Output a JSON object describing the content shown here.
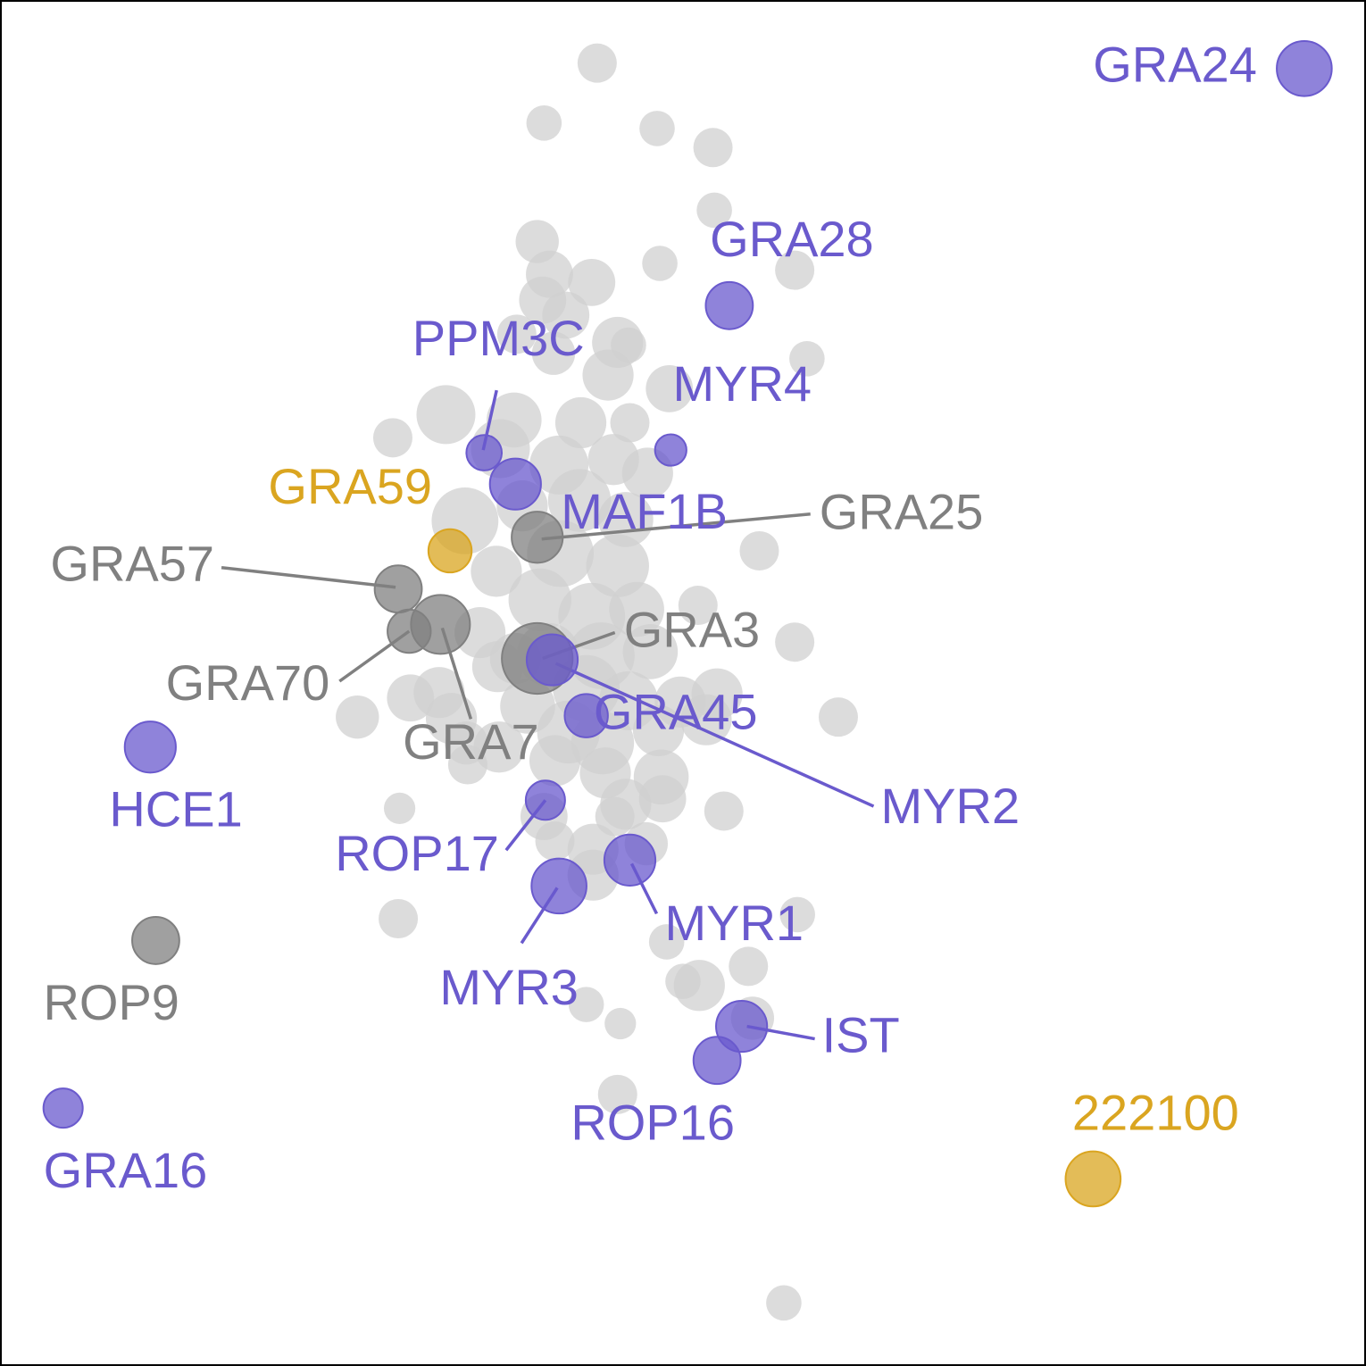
{
  "chart_data": {
    "type": "scatter",
    "title": "",
    "xlabel": "",
    "ylabel": "",
    "grid": false,
    "legend": "none",
    "axes_visible": false,
    "xlim": [
      0,
      100
    ],
    "ylim": [
      0,
      100
    ],
    "colors": {
      "background": "#d0d0d0",
      "highlight": "#6a5acd",
      "reference": "#808080",
      "novel": "#daa520"
    },
    "background_points": [
      {
        "x": 43.7,
        "y": 95.5,
        "s": 1.0
      },
      {
        "x": 39.8,
        "y": 91.1,
        "s": 0.9
      },
      {
        "x": 48.1,
        "y": 90.7,
        "s": 0.9
      },
      {
        "x": 52.2,
        "y": 89.3,
        "s": 1.0
      },
      {
        "x": 52.3,
        "y": 84.7,
        "s": 0.9
      },
      {
        "x": 39.3,
        "y": 82.4,
        "s": 1.1
      },
      {
        "x": 48.3,
        "y": 80.8,
        "s": 0.9
      },
      {
        "x": 40.2,
        "y": 80.0,
        "s": 1.2
      },
      {
        "x": 43.3,
        "y": 79.4,
        "s": 1.2
      },
      {
        "x": 58.2,
        "y": 80.3,
        "s": 1.0
      },
      {
        "x": 39.7,
        "y": 78.1,
        "s": 1.2
      },
      {
        "x": 41.4,
        "y": 77.0,
        "s": 1.2
      },
      {
        "x": 37.8,
        "y": 75.6,
        "s": 1.0
      },
      {
        "x": 40.5,
        "y": 74.2,
        "s": 1.1
      },
      {
        "x": 45.2,
        "y": 75.0,
        "s": 1.3
      },
      {
        "x": 46.0,
        "y": 74.8,
        "s": 0.9
      },
      {
        "x": 59.1,
        "y": 73.8,
        "s": 0.9
      },
      {
        "x": 44.5,
        "y": 72.6,
        "s": 1.3
      },
      {
        "x": 49.0,
        "y": 71.6,
        "s": 1.2
      },
      {
        "x": 32.6,
        "y": 69.7,
        "s": 1.5
      },
      {
        "x": 37.6,
        "y": 69.3,
        "s": 1.4
      },
      {
        "x": 42.5,
        "y": 69.1,
        "s": 1.3
      },
      {
        "x": 46.1,
        "y": 69.1,
        "s": 1.0
      },
      {
        "x": 28.7,
        "y": 68.0,
        "s": 1.0
      },
      {
        "x": 36.6,
        "y": 67.2,
        "s": 1.5
      },
      {
        "x": 40.9,
        "y": 66.0,
        "s": 1.5
      },
      {
        "x": 44.9,
        "y": 66.4,
        "s": 1.3
      },
      {
        "x": 47.4,
        "y": 65.4,
        "s": 1.3
      },
      {
        "x": 34.0,
        "y": 61.9,
        "s": 1.7
      },
      {
        "x": 38.2,
        "y": 63.0,
        "s": 1.3
      },
      {
        "x": 42.4,
        "y": 63.4,
        "s": 1.6
      },
      {
        "x": 45.8,
        "y": 62.0,
        "s": 1.4
      },
      {
        "x": 41.0,
        "y": 59.5,
        "s": 1.7
      },
      {
        "x": 45.2,
        "y": 58.6,
        "s": 1.6
      },
      {
        "x": 55.6,
        "y": 59.7,
        "s": 1.0
      },
      {
        "x": 36.3,
        "y": 58.2,
        "s": 1.3
      },
      {
        "x": 39.5,
        "y": 56.1,
        "s": 1.6
      },
      {
        "x": 43.3,
        "y": 54.9,
        "s": 1.7
      },
      {
        "x": 46.6,
        "y": 55.4,
        "s": 1.4
      },
      {
        "x": 51.1,
        "y": 55.7,
        "s": 1.0
      },
      {
        "x": 35.1,
        "y": 53.7,
        "s": 1.3
      },
      {
        "x": 37.7,
        "y": 51.8,
        "s": 1.3
      },
      {
        "x": 40.1,
        "y": 52.1,
        "s": 1.6
      },
      {
        "x": 44.0,
        "y": 52.0,
        "s": 1.7
      },
      {
        "x": 47.6,
        "y": 52.3,
        "s": 1.4
      },
      {
        "x": 58.2,
        "y": 53.0,
        "s": 1.0
      },
      {
        "x": 36.4,
        "y": 51.2,
        "s": 1.3
      },
      {
        "x": 42.9,
        "y": 49.6,
        "s": 1.7
      },
      {
        "x": 46.0,
        "y": 48.7,
        "s": 1.5
      },
      {
        "x": 49.8,
        "y": 48.6,
        "s": 1.3
      },
      {
        "x": 52.5,
        "y": 49.2,
        "s": 1.3
      },
      {
        "x": 32.1,
        "y": 49.3,
        "s": 1.3
      },
      {
        "x": 26.1,
        "y": 47.5,
        "s": 1.1
      },
      {
        "x": 30.0,
        "y": 48.9,
        "s": 1.2
      },
      {
        "x": 38.6,
        "y": 48.3,
        "s": 1.4
      },
      {
        "x": 41.6,
        "y": 46.4,
        "s": 1.6
      },
      {
        "x": 44.1,
        "y": 45.6,
        "s": 1.6
      },
      {
        "x": 48.2,
        "y": 46.5,
        "s": 1.3
      },
      {
        "x": 51.7,
        "y": 47.3,
        "s": 1.3
      },
      {
        "x": 61.4,
        "y": 47.5,
        "s": 1.0
      },
      {
        "x": 33.0,
        "y": 47.4,
        "s": 1.3
      },
      {
        "x": 34.1,
        "y": 45.6,
        "s": 1.1
      },
      {
        "x": 36.5,
        "y": 45.3,
        "s": 1.3
      },
      {
        "x": 40.6,
        "y": 44.3,
        "s": 1.3
      },
      {
        "x": 44.3,
        "y": 43.4,
        "s": 1.3
      },
      {
        "x": 48.4,
        "y": 43.1,
        "s": 1.4
      },
      {
        "x": 34.2,
        "y": 44.0,
        "s": 1.0
      },
      {
        "x": 29.2,
        "y": 40.8,
        "s": 0.8
      },
      {
        "x": 39.8,
        "y": 40.2,
        "s": 1.2
      },
      {
        "x": 45.8,
        "y": 41.1,
        "s": 1.3
      },
      {
        "x": 48.5,
        "y": 41.5,
        "s": 1.2
      },
      {
        "x": 53.0,
        "y": 40.6,
        "s": 1.0
      },
      {
        "x": 40.6,
        "y": 38.4,
        "s": 1.0
      },
      {
        "x": 45.0,
        "y": 40.2,
        "s": 1.0
      },
      {
        "x": 43.4,
        "y": 37.8,
        "s": 1.3
      },
      {
        "x": 47.3,
        "y": 38.2,
        "s": 1.1
      },
      {
        "x": 43.4,
        "y": 35.9,
        "s": 1.3
      },
      {
        "x": 58.4,
        "y": 33.0,
        "s": 0.9
      },
      {
        "x": 48.8,
        "y": 31.0,
        "s": 0.9
      },
      {
        "x": 54.8,
        "y": 29.2,
        "s": 1.0
      },
      {
        "x": 50.0,
        "y": 28.1,
        "s": 0.9
      },
      {
        "x": 51.2,
        "y": 27.8,
        "s": 1.3
      },
      {
        "x": 42.9,
        "y": 26.4,
        "s": 0.9
      },
      {
        "x": 45.4,
        "y": 25.0,
        "s": 0.8
      },
      {
        "x": 55.1,
        "y": 25.4,
        "s": 1.1
      },
      {
        "x": 45.2,
        "y": 19.8,
        "s": 1.0
      },
      {
        "x": 57.4,
        "y": 4.5,
        "s": 0.9
      },
      {
        "x": 29.1,
        "y": 32.7,
        "s": 1.0
      }
    ],
    "labeled_points": [
      {
        "label": "GRA24",
        "x": 95.6,
        "y": 95.1,
        "s": 1.4,
        "group": "highlight"
      },
      {
        "label": "GRA28",
        "x": 53.4,
        "y": 77.7,
        "s": 1.2,
        "group": "highlight"
      },
      {
        "label": "PPM3C",
        "x": 35.4,
        "y": 66.9,
        "s": 0.9,
        "group": "highlight"
      },
      {
        "label": "MYR4",
        "x": 49.1,
        "y": 67.1,
        "s": 0.8,
        "group": "highlight"
      },
      {
        "label": "MAF1B",
        "x": 37.7,
        "y": 64.6,
        "s": 1.3,
        "group": "highlight"
      },
      {
        "label": "GRA59",
        "x": 32.9,
        "y": 59.7,
        "s": 1.1,
        "group": "novel"
      },
      {
        "label": "GRA25",
        "x": 39.3,
        "y": 60.7,
        "s": 1.3,
        "group": "reference"
      },
      {
        "label": "GRA57",
        "x": 29.1,
        "y": 56.9,
        "s": 1.2,
        "group": "reference"
      },
      {
        "label": "GRA7",
        "x": 32.2,
        "y": 54.3,
        "s": 1.5,
        "group": "reference"
      },
      {
        "label": "GRA70",
        "x": 29.9,
        "y": 53.8,
        "s": 1.1,
        "group": "reference"
      },
      {
        "label": "GRA3",
        "x": 39.3,
        "y": 51.8,
        "s": 1.8,
        "group": "reference"
      },
      {
        "label": "MYR2",
        "x": 40.4,
        "y": 51.7,
        "s": 1.3,
        "group": "highlight"
      },
      {
        "label": "GRA45",
        "x": 42.9,
        "y": 47.6,
        "s": 1.1,
        "group": "highlight"
      },
      {
        "label": "HCE1",
        "x": 10.9,
        "y": 45.3,
        "s": 1.3,
        "group": "highlight"
      },
      {
        "label": "ROP17",
        "x": 39.9,
        "y": 41.4,
        "s": 1.0,
        "group": "highlight"
      },
      {
        "label": "MYR1",
        "x": 46.1,
        "y": 37.0,
        "s": 1.3,
        "group": "highlight"
      },
      {
        "label": "MYR3",
        "x": 40.9,
        "y": 35.1,
        "s": 1.4,
        "group": "highlight"
      },
      {
        "label": "ROP9",
        "x": 11.3,
        "y": 31.1,
        "s": 1.2,
        "group": "reference"
      },
      {
        "label": "IST",
        "x": 54.3,
        "y": 24.8,
        "s": 1.3,
        "group": "highlight"
      },
      {
        "label": "ROP16",
        "x": 52.5,
        "y": 22.3,
        "s": 1.2,
        "group": "highlight"
      },
      {
        "label": "GRA16",
        "x": 4.5,
        "y": 18.8,
        "s": 1.0,
        "group": "highlight"
      },
      {
        "label": "222100",
        "x": 80.1,
        "y": 13.6,
        "s": 1.4,
        "group": "novel"
      }
    ]
  }
}
